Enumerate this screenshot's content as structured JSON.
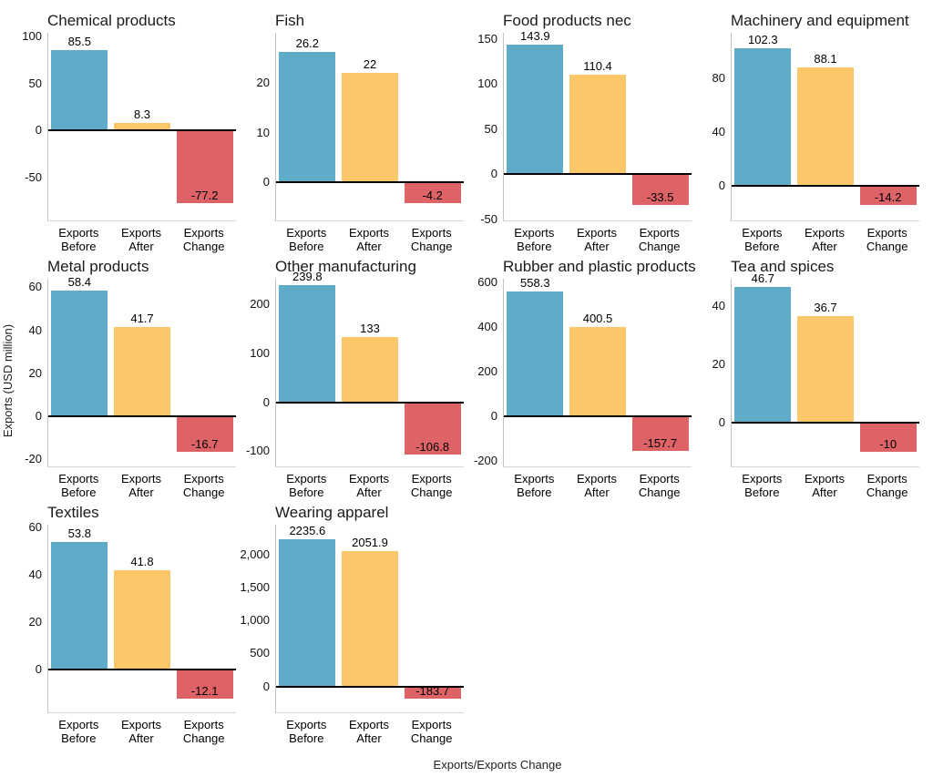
{
  "chart_data": {
    "type": "bar",
    "title": "",
    "ylabel": "Exports (USD million)",
    "xlabel": "Exports/Exports Change",
    "grid": "off",
    "legend": "none",
    "categories": [
      "Exports Before",
      "Exports After",
      "Exports Change"
    ],
    "category_lines": [
      [
        "Exports",
        "Before"
      ],
      [
        "Exports",
        "After"
      ],
      [
        "Exports",
        "Change"
      ]
    ],
    "bar_colors": [
      "#5FACC8",
      "#FAC869",
      "#DE6366"
    ],
    "zero_line_color": "#000000",
    "axis_line_color": "#c2c2c2",
    "facets": [
      {
        "title": "Chemical products",
        "values": [
          85.5,
          8.3,
          -77.2
        ],
        "value_labels": [
          "85.5",
          "8.3",
          "-77.2"
        ],
        "ytick_values": [
          100,
          50,
          0,
          -50
        ],
        "ytick_labels": [
          "100",
          "50",
          "0",
          "-50"
        ],
        "ylim": [
          -96,
          104
        ]
      },
      {
        "title": "Fish",
        "values": [
          26.2,
          22,
          -4.2
        ],
        "value_labels": [
          "26.2",
          "22",
          "-4.2"
        ],
        "ytick_values": [
          20,
          10,
          0
        ],
        "ytick_labels": [
          "20",
          "10",
          "0"
        ],
        "ylim": [
          -7.6,
          30
        ]
      },
      {
        "title": "Food products nec",
        "values": [
          143.9,
          110.4,
          -33.5
        ],
        "value_labels": [
          "143.9",
          "110.4",
          "-33.5"
        ],
        "ytick_values": [
          150,
          100,
          50,
          0,
          -50
        ],
        "ytick_labels": [
          "150",
          "100",
          "50",
          "0",
          "-50"
        ],
        "ylim": [
          -51,
          157
        ]
      },
      {
        "title": "Machinery and equipment",
        "values": [
          102.3,
          88.1,
          -14.2
        ],
        "value_labels": [
          "102.3",
          "88.1",
          "-14.2"
        ],
        "ytick_values": [
          80,
          40,
          0
        ],
        "ytick_labels": [
          "80",
          "40",
          "0"
        ],
        "ylim": [
          -26,
          114
        ]
      },
      {
        "title": "Metal products",
        "values": [
          58.4,
          41.7,
          -16.7
        ],
        "value_labels": [
          "58.4",
          "41.7",
          "-16.7"
        ],
        "ytick_values": [
          60,
          40,
          20,
          0,
          -20
        ],
        "ytick_labels": [
          "60",
          "40",
          "20",
          "0",
          "-20"
        ],
        "ylim": [
          -23.5,
          64
        ]
      },
      {
        "title": "Other manufacturing",
        "values": [
          239.8,
          133,
          -106.8
        ],
        "value_labels": [
          "239.8",
          "133",
          "-106.8"
        ],
        "ytick_values": [
          200,
          100,
          0,
          -100
        ],
        "ytick_labels": [
          "200",
          "100",
          "0",
          "-100"
        ],
        "ylim": [
          -131,
          252
        ]
      },
      {
        "title": "Rubber and plastic products",
        "values": [
          558.3,
          400.5,
          -157.7
        ],
        "value_labels": [
          "558.3",
          "400.5",
          "-157.7"
        ],
        "ytick_values": [
          600,
          400,
          200,
          0,
          -200
        ],
        "ytick_labels": [
          "600",
          "400",
          "200",
          "0",
          "-200"
        ],
        "ylim": [
          -225,
          615
        ]
      },
      {
        "title": "Tea and spices",
        "values": [
          46.7,
          36.7,
          -10
        ],
        "value_labels": [
          "46.7",
          "36.7",
          "-10"
        ],
        "ytick_values": [
          40,
          20,
          0
        ],
        "ytick_labels": [
          "40",
          "20",
          "0"
        ],
        "ylim": [
          -15,
          49.5
        ]
      },
      {
        "title": "Textiles",
        "values": [
          53.8,
          41.8,
          -12.1
        ],
        "value_labels": [
          "53.8",
          "41.8",
          "-12.1"
        ],
        "ytick_values": [
          60,
          40,
          20,
          0
        ],
        "ytick_labels": [
          "60",
          "40",
          "20",
          "0"
        ],
        "ylim": [
          -17.8,
          61
        ]
      },
      {
        "title": "Wearing apparel",
        "values": [
          2235.6,
          2051.9,
          -183.7
        ],
        "value_labels": [
          "2235.6",
          "2051.9",
          "-183.7"
        ],
        "ytick_values": [
          2000,
          1500,
          1000,
          500,
          0
        ],
        "ytick_labels": [
          "2,000",
          "1,500",
          "1,000",
          "500",
          "0"
        ],
        "ylim": [
          -390,
          2450
        ]
      }
    ]
  }
}
